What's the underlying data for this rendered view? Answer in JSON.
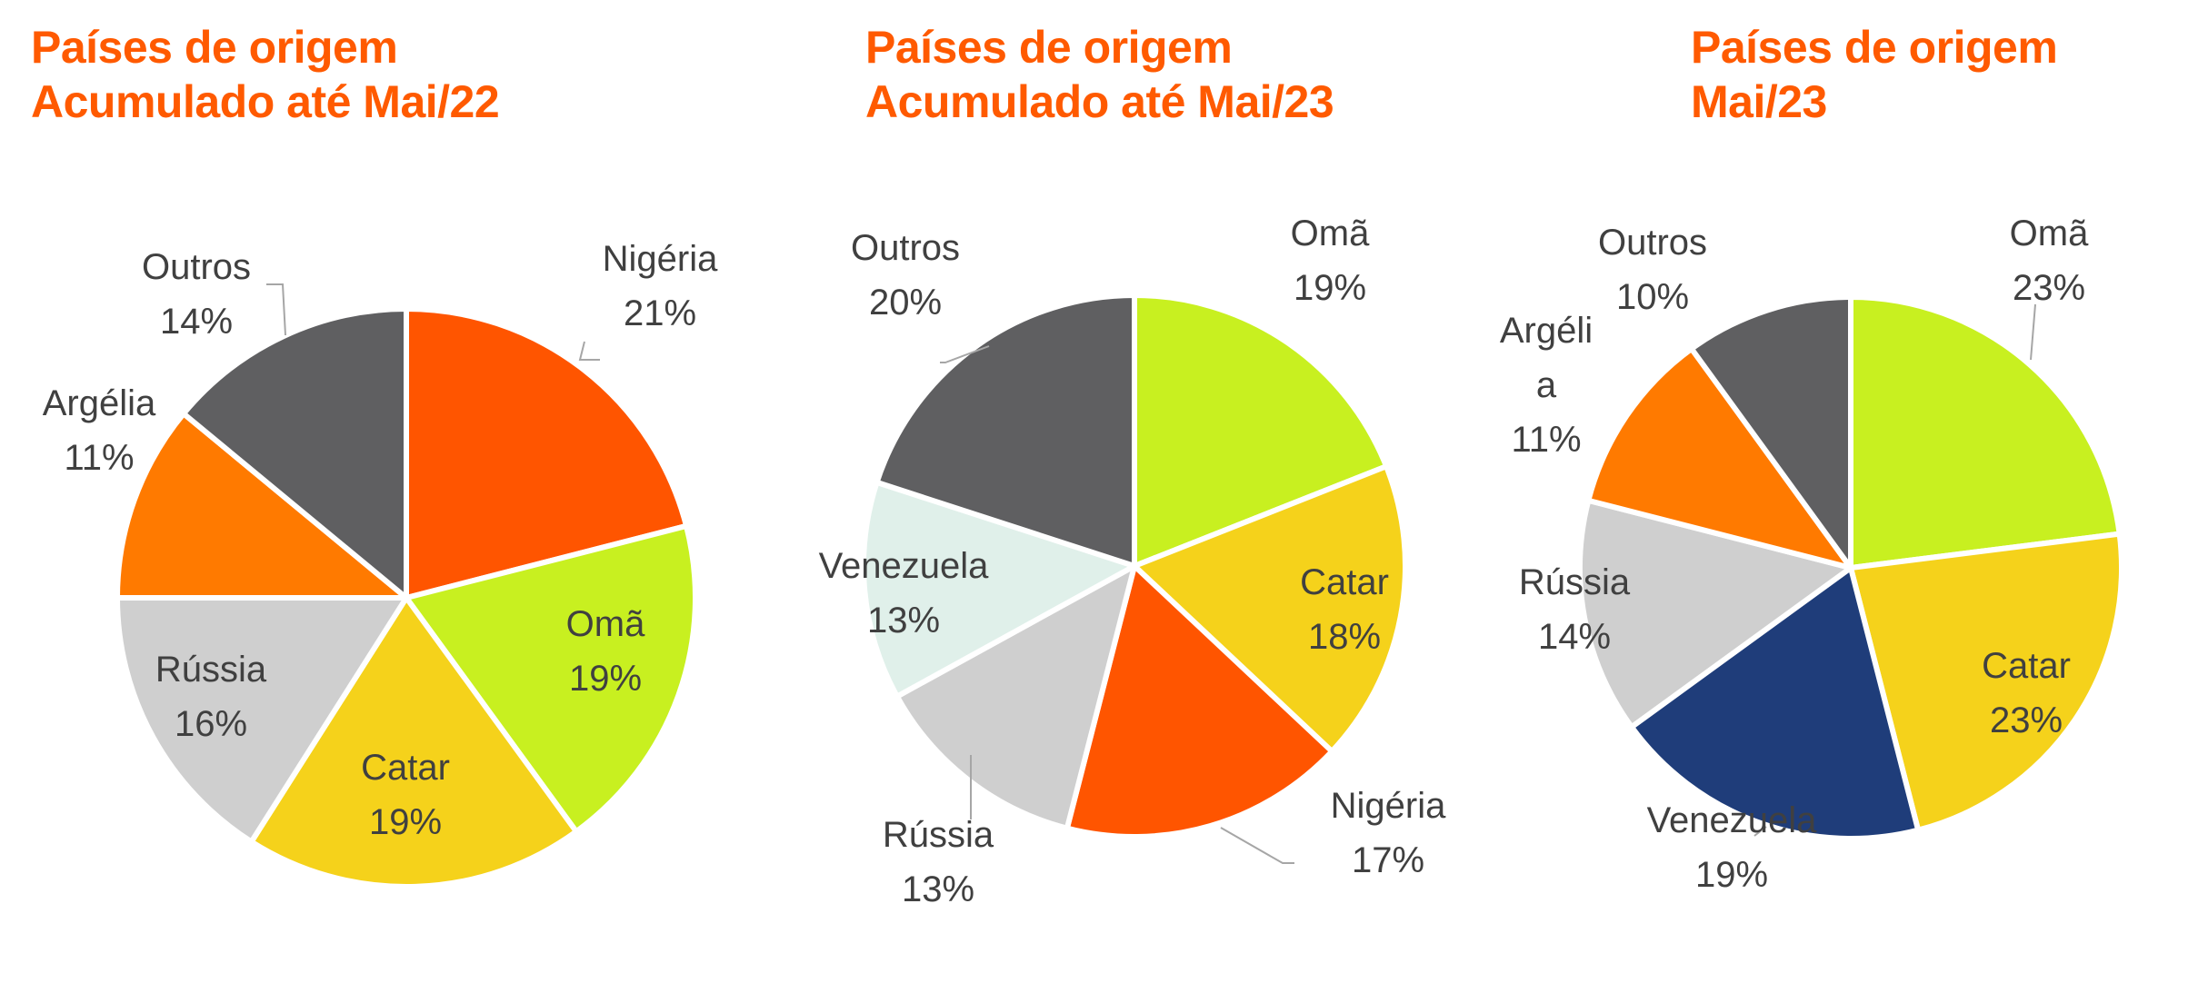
{
  "colors": {
    "title": "#ff5a00",
    "label": "#404040",
    "Nigéria": "#ff5500",
    "Omã": "#c8f020",
    "Catar": "#f5d21b",
    "Rússia": "#cfcfcf",
    "Argélia": "#ff7a00",
    "Outros": "#5f5f61",
    "Venezuela_light": "#e0f0ea",
    "Venezuela_dark": "#1f3d7a"
  },
  "chart_data": [
    {
      "type": "pie",
      "title": [
        "Países de origem",
        "Acumulado até Mai/22"
      ],
      "slices": [
        {
          "label": [
            "Nigéria"
          ],
          "value": 21,
          "value_label": "21%"
        },
        {
          "label": [
            "Omã"
          ],
          "value": 19,
          "value_label": "19%"
        },
        {
          "label": [
            "Catar"
          ],
          "value": 19,
          "value_label": "19%"
        },
        {
          "label": [
            "Rússia"
          ],
          "value": 16,
          "value_label": "16%"
        },
        {
          "label": [
            "Argélia"
          ],
          "value": 11,
          "value_label": "11%"
        },
        {
          "label": [
            "Outros"
          ],
          "value": 14,
          "value_label": "14%"
        }
      ]
    },
    {
      "type": "pie",
      "title": [
        "Países de origem",
        "Acumulado até Mai/23"
      ],
      "slices": [
        {
          "label": [
            "Omã"
          ],
          "value": 19,
          "value_label": "19%"
        },
        {
          "label": [
            "Catar"
          ],
          "value": 18,
          "value_label": "18%"
        },
        {
          "label": [
            "Nigéria"
          ],
          "value": 17,
          "value_label": "17%"
        },
        {
          "label": [
            "Rússia"
          ],
          "value": 13,
          "value_label": "13%"
        },
        {
          "label": [
            "Venezuela"
          ],
          "value": 13,
          "value_label": "13%"
        },
        {
          "label": [
            "Outros"
          ],
          "value": 20,
          "value_label": "20%"
        }
      ]
    },
    {
      "type": "pie",
      "title": [
        "Países de origem",
        "Mai/23"
      ],
      "slices": [
        {
          "label": [
            "Omã"
          ],
          "value": 23,
          "value_label": "23%"
        },
        {
          "label": [
            "Catar"
          ],
          "value": 23,
          "value_label": "23%"
        },
        {
          "label": [
            "Venezuela"
          ],
          "value": 19,
          "value_label": "19%"
        },
        {
          "label": [
            "Rússia"
          ],
          "value": 14,
          "value_label": "14%"
        },
        {
          "label": [
            "Argéli",
            "a"
          ],
          "value": 11,
          "value_label": "11%"
        },
        {
          "label": [
            "Outros"
          ],
          "value": 10,
          "value_label": "10%"
        }
      ]
    }
  ]
}
